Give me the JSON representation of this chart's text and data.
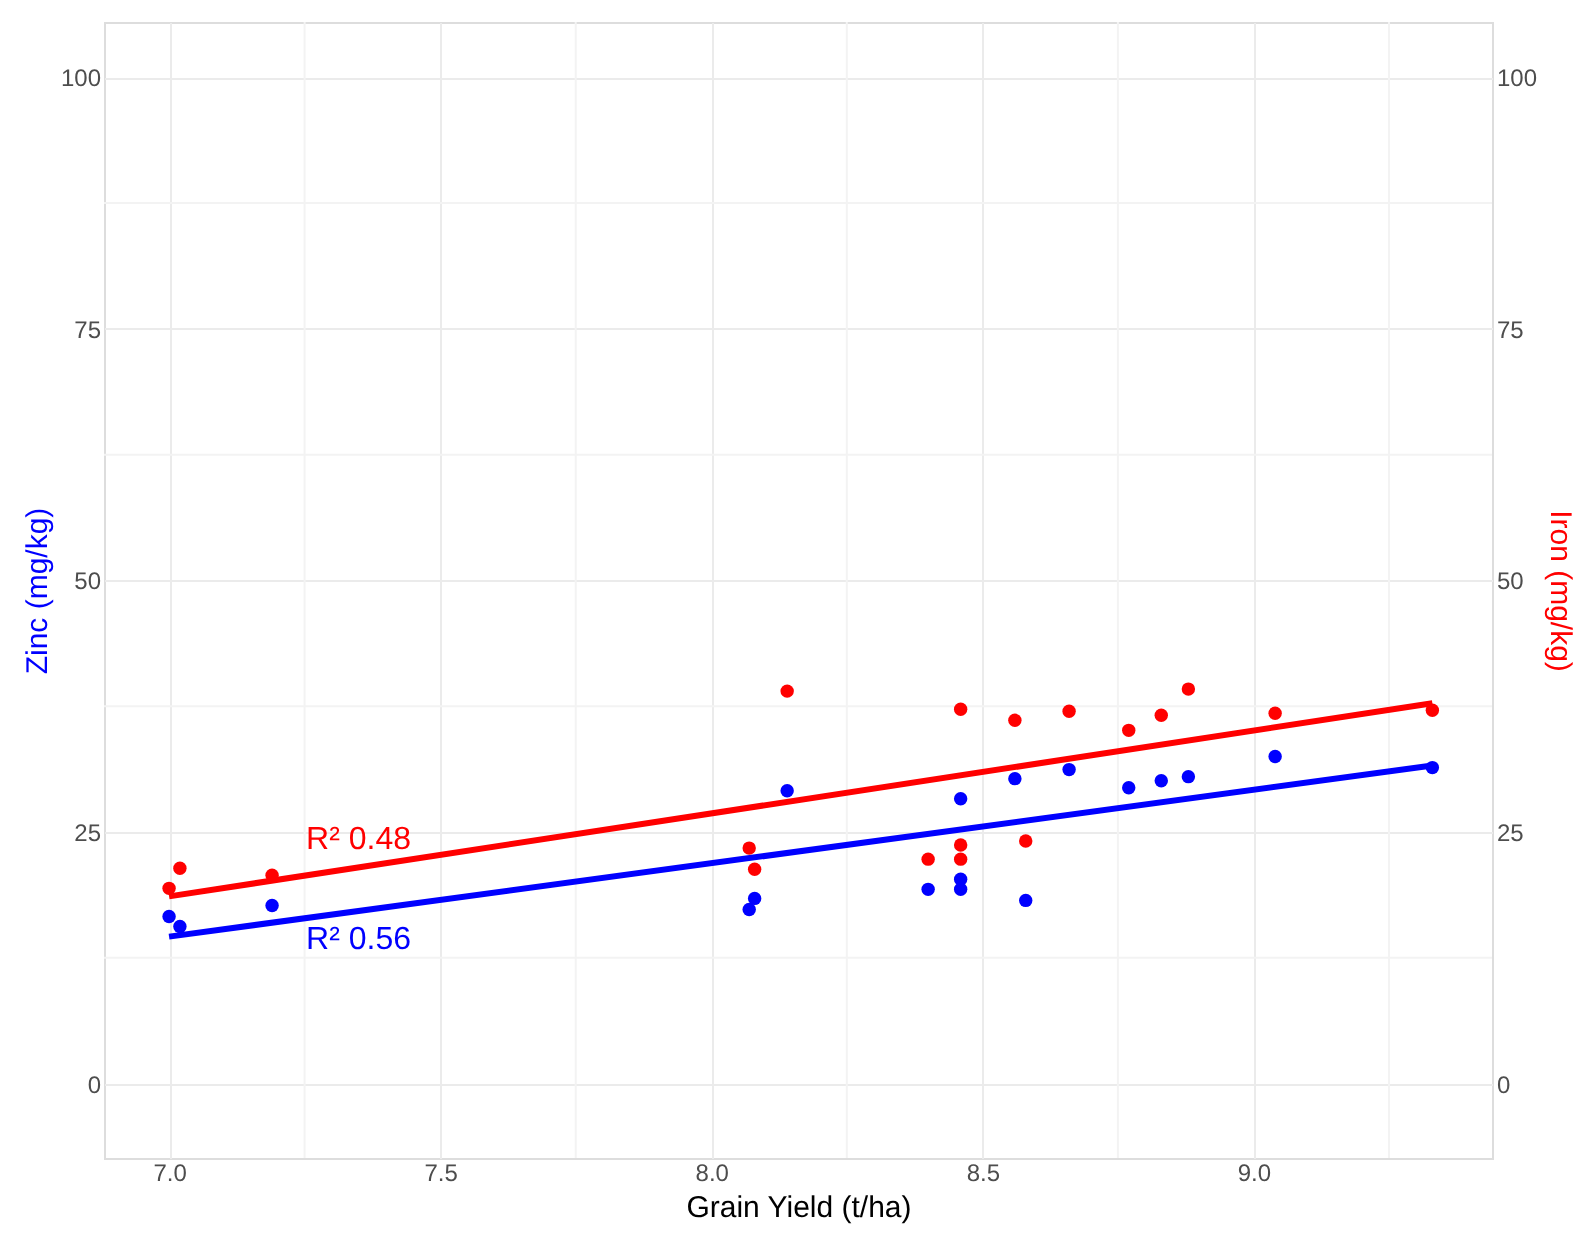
{
  "chart_data": {
    "type": "scatter",
    "xlabel": "Grain Yield (t/ha)",
    "ylabel": "Zinc (mg/kg)",
    "y2label": "Iron (mg/kg)",
    "series": [
      {
        "color": "#0000ff",
        "x": [
          7.0,
          7.02,
          7.19,
          8.07,
          8.08,
          8.14,
          8.4,
          8.46,
          8.46,
          8.46,
          8.56,
          8.58,
          8.66,
          8.77,
          8.83,
          8.88,
          9.04,
          9.33
        ],
        "values": [
          16.6,
          15.6,
          17.7,
          17.3,
          18.4,
          29.1,
          19.3,
          20.3,
          19.3,
          28.3,
          30.3,
          18.2,
          31.2,
          29.4,
          30.1,
          30.5,
          32.5,
          31.4
        ]
      },
      {
        "color": "#ff0000",
        "axis": "y2",
        "x": [
          7.0,
          7.02,
          7.19,
          8.07,
          8.08,
          8.14,
          8.4,
          8.46,
          8.46,
          8.46,
          8.56,
          8.58,
          8.66,
          8.77,
          8.83,
          8.88,
          9.04,
          9.33
        ],
        "values": [
          19.4,
          21.4,
          20.7,
          23.4,
          21.3,
          39.0,
          22.3,
          23.7,
          22.3,
          37.2,
          36.1,
          24.1,
          37.0,
          35.1,
          36.6,
          39.2,
          36.8,
          37.1
        ]
      },
      {
        "color": "#0000ff",
        "type": "line",
        "marker": "none",
        "line_style": "solid",
        "x": [
          7.0,
          9.33
        ],
        "values": [
          14.6,
          31.6
        ]
      },
      {
        "color": "#ff0000",
        "type": "line",
        "marker": "none",
        "line_style": "solid",
        "axis": "y2",
        "x": [
          7.0,
          9.33
        ],
        "values": [
          18.6,
          37.8
        ]
      }
    ],
    "annotations": [
      "R² 0.56",
      "R² 0.48"
    ],
    "xlim": [
      6.88,
      9.44
    ],
    "xticks": [
      {
        "value": 7,
        "label": "7.0"
      },
      {
        "value": 7.5,
        "label": "7.5"
      },
      {
        "value": 8,
        "label": "8.0"
      },
      {
        "value": 8.5,
        "label": "8.5"
      },
      {
        "value": 9,
        "label": "9.0"
      }
    ],
    "ylim": [
      -7.4,
      105.5
    ],
    "yticks": [
      0,
      25,
      50,
      75,
      100
    ],
    "y2lim": [
      -7.4,
      105.5
    ],
    "y2ticks": [
      0,
      25,
      50,
      75,
      100
    ],
    "grid": true,
    "marker": "circle"
  }
}
